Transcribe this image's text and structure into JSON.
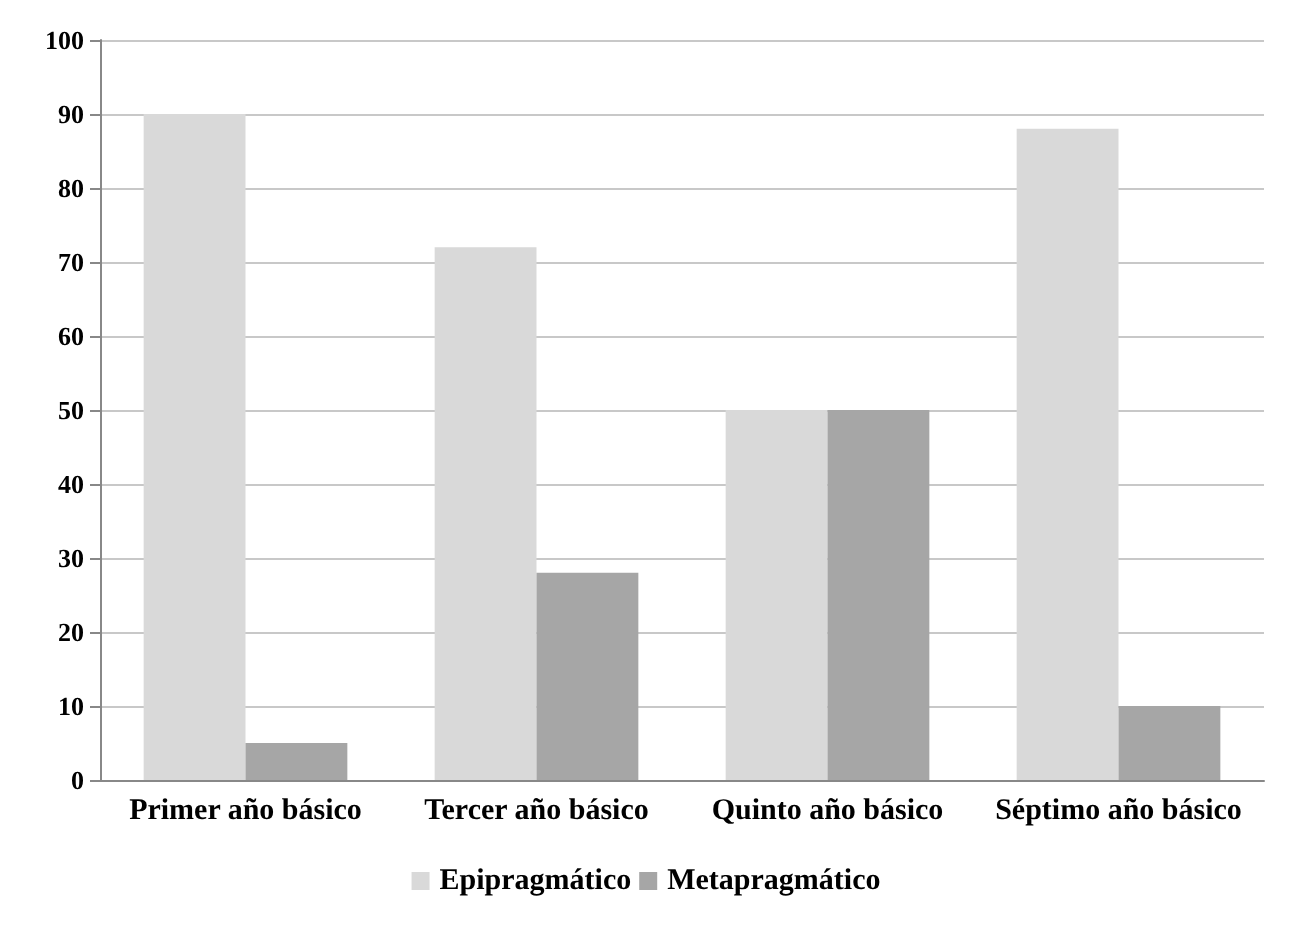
{
  "chart_data": {
    "type": "bar",
    "categories": [
      "Primer año básico",
      "Tercer año básico",
      "Quinto año básico",
      "Séptimo año básico"
    ],
    "series": [
      {
        "name": "Epipragmático",
        "color": "#d9d9d9",
        "values": [
          90,
          72,
          50,
          88
        ]
      },
      {
        "name": "Metapragmático",
        "color": "#a6a6a6",
        "values": [
          5,
          28,
          50,
          10
        ]
      }
    ],
    "ylim": [
      0,
      100
    ],
    "yticks": [
      0,
      10,
      20,
      30,
      40,
      50,
      60,
      70,
      80,
      90,
      100
    ],
    "grid": "y",
    "legend": "bottom"
  }
}
